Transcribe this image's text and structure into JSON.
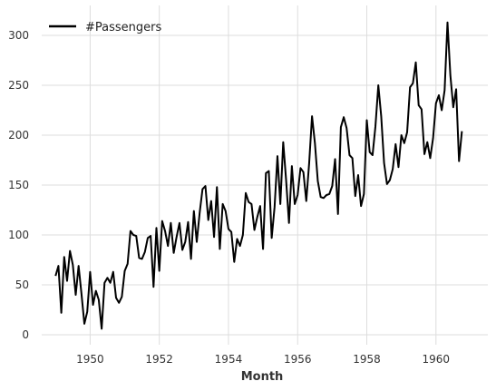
{
  "chart_data": {
    "type": "line",
    "title": "",
    "xlabel": "Month",
    "ylabel": "",
    "xlim": [
      1948.6,
      1961.5
    ],
    "ylim": [
      -10,
      330
    ],
    "grid": true,
    "legend_position": "top-left",
    "x_ticks": [
      1950,
      1952,
      1954,
      1956,
      1958,
      1960
    ],
    "y_ticks": [
      0,
      50,
      100,
      150,
      200,
      250,
      300
    ],
    "series": [
      {
        "name": "#Passengers",
        "color": "#000000",
        "x_start": 1949.0,
        "x_step": 0.0833333,
        "values": [
          59,
          69,
          22,
          78,
          54,
          84,
          70,
          40,
          69,
          41,
          11,
          23,
          63,
          30,
          44,
          35,
          6,
          52,
          57,
          52,
          63,
          37,
          32,
          38,
          64,
          71,
          104,
          100,
          99,
          77,
          76,
          83,
          97,
          99,
          48,
          107,
          64,
          114,
          104,
          89,
          112,
          82,
          98,
          112,
          85,
          93,
          113,
          76,
          124,
          93,
          122,
          146,
          149,
          115,
          134,
          98,
          148,
          86,
          131,
          124,
          106,
          103,
          73,
          96,
          89,
          100,
          142,
          133,
          131,
          105,
          118,
          129,
          86,
          162,
          164,
          97,
          128,
          179,
          131,
          193,
          155,
          112,
          169,
          131,
          140,
          167,
          163,
          134,
          172,
          219,
          192,
          154,
          138,
          137,
          140,
          141,
          149,
          176,
          121,
          208,
          218,
          207,
          180,
          177,
          139,
          160,
          129,
          141,
          215,
          183,
          180,
          209,
          250,
          219,
          172,
          151,
          155,
          166,
          191,
          168,
          200,
          192,
          203,
          248,
          252,
          273,
          230,
          226,
          181,
          193,
          177,
          197,
          232,
          240,
          225,
          245,
          313,
          260,
          228,
          246,
          174,
          204
        ]
      }
    ]
  }
}
